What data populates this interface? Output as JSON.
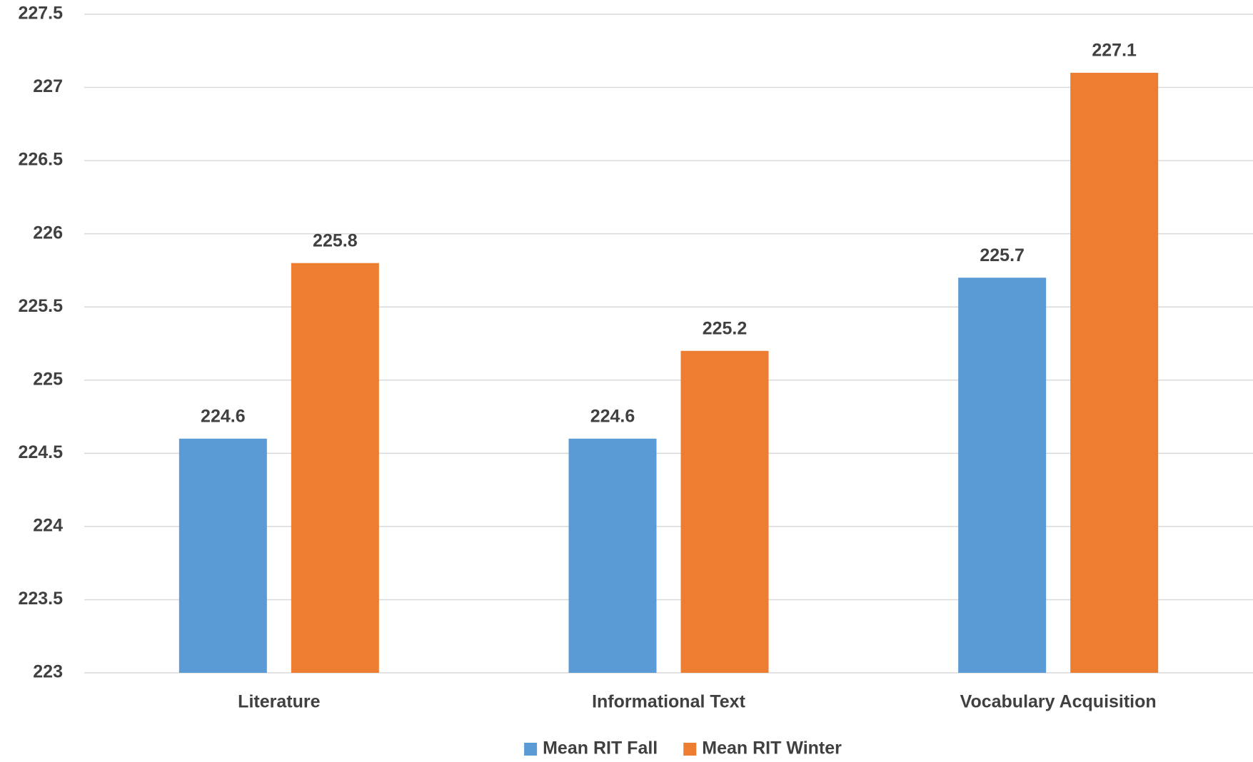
{
  "chart_data": {
    "type": "bar",
    "categories": [
      "Literature",
      "Informational Text",
      "Vocabulary Acquisition"
    ],
    "series": [
      {
        "name": "Mean RIT Fall",
        "color": "#5b9bd5",
        "values": [
          224.6,
          224.6,
          225.7
        ]
      },
      {
        "name": "Mean RIT Winter",
        "color": "#ed7d31",
        "values": [
          225.8,
          225.2,
          227.1
        ]
      }
    ],
    "ylim": [
      223,
      227.5
    ],
    "yticks": [
      223,
      223.5,
      224,
      224.5,
      225,
      225.5,
      226,
      226.5,
      227,
      227.5
    ],
    "grid": true,
    "legend": "bottom"
  }
}
